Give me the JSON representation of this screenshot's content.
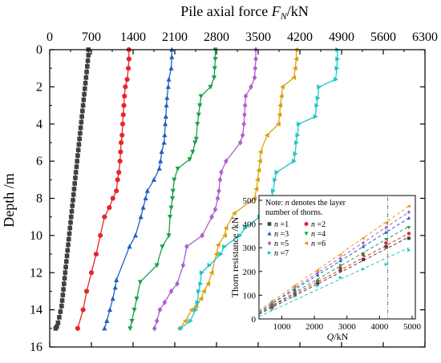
{
  "chart_data": [
    {
      "type": "line",
      "xlabel": "Pile axial force F_N/kN",
      "xlabel_main": "Pile axial force ",
      "xlabel_var": "F",
      "xlabel_sub": "N",
      "xlabel_unit": "/kN",
      "ylabel": "Depth /m",
      "xlim": [
        0,
        6300
      ],
      "ylim": [
        0,
        16
      ],
      "x_axis_position": "top",
      "y_inverted": true,
      "grid": false,
      "x_ticks": [
        0,
        700,
        1400,
        2100,
        2800,
        3500,
        4200,
        4900,
        5600,
        6300
      ],
      "y_ticks": [
        0,
        2,
        4,
        6,
        8,
        10,
        12,
        14,
        16
      ],
      "series": [
        {
          "color": "#404040",
          "marker": "square",
          "x": [
            650,
            650,
            640,
            630,
            620,
            610,
            600,
            590,
            580,
            570,
            560,
            550,
            540,
            530,
            520,
            510,
            500,
            490,
            480,
            470,
            460,
            450,
            440,
            430,
            420,
            410,
            400,
            390,
            380,
            370,
            360,
            350,
            340,
            330,
            320,
            310,
            300,
            290,
            280,
            270,
            260,
            250,
            240,
            230,
            220,
            210,
            200,
            180,
            160,
            140,
            120,
            100
          ],
          "y": [
            0,
            0.3,
            0.6,
            0.9,
            1.2,
            1.5,
            1.8,
            2.1,
            2.4,
            2.7,
            3.0,
            3.3,
            3.6,
            3.9,
            4.2,
            4.5,
            4.8,
            5.1,
            5.4,
            5.7,
            6.0,
            6.3,
            6.6,
            6.9,
            7.2,
            7.5,
            7.8,
            8.1,
            8.4,
            8.7,
            9.0,
            9.3,
            9.6,
            9.9,
            10.2,
            10.5,
            10.8,
            11.1,
            11.4,
            11.7,
            12.0,
            12.3,
            12.6,
            12.9,
            13.2,
            13.5,
            13.8,
            14.1,
            14.4,
            14.7,
            14.9,
            15.0
          ]
        },
        {
          "color": "#e8252a",
          "marker": "circle",
          "x": [
            1330,
            1330,
            1320,
            1300,
            1270,
            1255,
            1245,
            1235,
            1225,
            1215,
            1200,
            1190,
            1180,
            1160,
            1140,
            1120,
            1060,
            1000,
            920,
            850,
            780,
            700,
            620,
            560,
            470
          ],
          "y": [
            0,
            0.5,
            1.0,
            1.6,
            2.0,
            2.5,
            3.0,
            3.5,
            4.0,
            4.6,
            5.0,
            5.5,
            6.0,
            6.6,
            7.0,
            7.6,
            8.0,
            8.5,
            9.0,
            10.0,
            11.0,
            12.0,
            13.0,
            14.0,
            15.0
          ]
        },
        {
          "color": "#1f5fc4",
          "marker": "triangle-up",
          "x": [
            2050,
            2050,
            2040,
            2000,
            1990,
            1970,
            1960,
            1950,
            1940,
            1930,
            1920,
            1880,
            1860,
            1840,
            1750,
            1640,
            1610,
            1570,
            1530,
            1440,
            1340,
            1120,
            1100,
            1060,
            1010,
            960,
            920
          ],
          "y": [
            0,
            0.4,
            1.0,
            1.6,
            2.0,
            2.6,
            3.0,
            3.6,
            4.0,
            4.6,
            5.0,
            5.5,
            6.0,
            6.4,
            7.0,
            7.6,
            8.0,
            8.5,
            9.0,
            10.0,
            10.6,
            12.4,
            12.8,
            13.4,
            14.0,
            14.6,
            15.0
          ]
        },
        {
          "color": "#17a04a",
          "marker": "triangle-down",
          "x": [
            2780,
            2780,
            2770,
            2760,
            2700,
            2540,
            2520,
            2500,
            2480,
            2460,
            2440,
            2400,
            2350,
            2150,
            2090,
            2070,
            2060,
            2040,
            2020,
            2000,
            1890,
            1800,
            1520,
            1460,
            1420,
            1380,
            1350
          ],
          "y": [
            0,
            0.5,
            1.0,
            1.5,
            2.0,
            2.5,
            3.0,
            3.5,
            4.0,
            4.8,
            5.0,
            5.5,
            5.9,
            6.4,
            7.0,
            7.6,
            8.0,
            8.5,
            9.0,
            10.0,
            10.6,
            11.6,
            12.5,
            13.4,
            14.0,
            14.6,
            15.0
          ]
        },
        {
          "color": "#b05fd0",
          "marker": "diamond",
          "x": [
            3460,
            3460,
            3450,
            3440,
            3380,
            3290,
            3280,
            3270,
            3260,
            3240,
            3200,
            2960,
            2880,
            2860,
            2840,
            2820,
            2780,
            2720,
            2560,
            2300,
            2240,
            2140,
            2040,
            1930,
            1850,
            1800,
            1760
          ],
          "y": [
            0,
            0.5,
            1.0,
            1.5,
            2.0,
            2.5,
            3.0,
            3.5,
            4.0,
            4.6,
            5.0,
            6.0,
            6.6,
            7.0,
            7.6,
            8.0,
            8.6,
            9.0,
            10.0,
            10.6,
            11.6,
            12.6,
            13.0,
            13.6,
            14.0,
            14.6,
            15.0
          ]
        },
        {
          "color": "#dba011",
          "marker": "triangle-left",
          "x": [
            4140,
            4140,
            4120,
            4100,
            3910,
            3890,
            3870,
            3860,
            3840,
            3650,
            3540,
            3530,
            3510,
            3490,
            3470,
            3440,
            3100,
            2960,
            2940,
            2830,
            2800,
            2720,
            2660,
            2590,
            2540,
            2460,
            2380,
            2280,
            2180
          ],
          "y": [
            0,
            0.5,
            1.0,
            1.5,
            2.0,
            2.5,
            3.0,
            3.5,
            4.0,
            4.6,
            5.5,
            6.0,
            6.5,
            7.0,
            7.5,
            8.0,
            8.8,
            9.6,
            10.0,
            10.5,
            11.0,
            12.0,
            12.6,
            13.0,
            13.4,
            13.8,
            14.0,
            14.6,
            15.0
          ]
        },
        {
          "color": "#1ec5c5",
          "marker": "triangle-right",
          "x": [
            4830,
            4830,
            4820,
            4800,
            4520,
            4500,
            4480,
            4460,
            4180,
            4160,
            4140,
            4120,
            4100,
            3810,
            3780,
            3750,
            3720,
            3680,
            3520,
            3280,
            3190,
            2930,
            2870,
            2680,
            2550,
            2530,
            2500,
            2480,
            2450,
            2360,
            2200
          ],
          "y": [
            0,
            0.5,
            1.0,
            1.6,
            2.0,
            2.6,
            3.0,
            3.6,
            4.0,
            4.6,
            5.0,
            5.6,
            6.0,
            6.6,
            7.0,
            7.6,
            8.0,
            8.6,
            9.0,
            9.6,
            10.0,
            10.6,
            11.0,
            11.6,
            12.0,
            12.6,
            13.0,
            13.6,
            14.0,
            14.6,
            15.0
          ]
        }
      ]
    },
    {
      "type": "scatter",
      "xlabel": "Q/kN",
      "xlabel_var": "Q",
      "xlabel_unit": "/kN",
      "ylabel": "Thorn resistance /kN",
      "xlim": [
        300,
        5100
      ],
      "ylim": [
        0,
        520
      ],
      "x_ticks": [
        1000,
        2000,
        3000,
        4000,
        5000
      ],
      "y_ticks": [
        0,
        100,
        200,
        300,
        400,
        500
      ],
      "vline_x": 4250,
      "note": "Note: n denotes the layer number of thorns.",
      "note_line1": "Note: ",
      "note_var": "n",
      "note_line1_rest": " denotes the layer",
      "note_line2": "number of thorns.",
      "legend": [
        {
          "var": "n",
          "text": " =1"
        },
        {
          "var": "n",
          "text": " =2"
        },
        {
          "var": "n",
          "text": " =3"
        },
        {
          "var": "n",
          "text": " =4"
        },
        {
          "var": "n",
          "text": " =5"
        },
        {
          "var": "n",
          "text": " =6"
        },
        {
          "var": "n",
          "text": " =7"
        }
      ],
      "series": [
        {
          "color": "#404040",
          "marker": "square",
          "x": [
            700,
            1400,
            2100,
            2800,
            3500,
            4200,
            4900
          ],
          "y": [
            50,
            100,
            150,
            205,
            250,
            305,
            340
          ],
          "fit": [
            [
              300,
              20
            ],
            [
              4900,
              345
            ]
          ]
        },
        {
          "color": "#e8252a",
          "marker": "circle",
          "x": [
            700,
            1400,
            2100,
            2800,
            3500,
            4200,
            4900
          ],
          "y": [
            55,
            110,
            160,
            215,
            270,
            320,
            360
          ],
          "fit": [
            [
              300,
              25
            ],
            [
              4900,
              360
            ]
          ]
        },
        {
          "color": "#1f5fc4",
          "marker": "triangle-up",
          "x": [
            700,
            1400,
            2100,
            2800,
            3500,
            4200,
            4900
          ],
          "y": [
            65,
            125,
            185,
            245,
            305,
            365,
            425
          ],
          "fit": [
            [
              300,
              30
            ],
            [
              4900,
              425
            ]
          ]
        },
        {
          "color": "#17a04a",
          "marker": "triangle-down",
          "x": [
            700,
            1400,
            2100,
            2800,
            3500,
            4200,
            4900
          ],
          "y": [
            60,
            115,
            160,
            225,
            275,
            335,
            385
          ],
          "fit": [
            [
              300,
              25
            ],
            [
              4900,
              390
            ]
          ]
        },
        {
          "color": "#b05fd0",
          "marker": "diamond",
          "x": [
            700,
            1400,
            2100,
            2800,
            3500,
            4200,
            4900
          ],
          "y": [
            70,
            135,
            195,
            255,
            320,
            385,
            450
          ],
          "fit": [
            [
              300,
              30
            ],
            [
              4900,
              450
            ]
          ]
        },
        {
          "color": "#dba011",
          "marker": "triangle-left",
          "x": [
            700,
            1400,
            2100,
            2800,
            3500,
            4200,
            4900
          ],
          "y": [
            75,
            140,
            205,
            270,
            340,
            405,
            475
          ],
          "fit": [
            [
              300,
              35
            ],
            [
              4900,
              475
            ]
          ]
        },
        {
          "color": "#1ec5c5",
          "marker": "triangle-right",
          "x": [
            700,
            1400,
            2100,
            2800,
            3500,
            4200,
            4900
          ],
          "y": [
            40,
            95,
            140,
            175,
            210,
            230,
            290
          ],
          "fit": [
            [
              300,
              10
            ],
            [
              4900,
              300
            ]
          ]
        }
      ]
    }
  ]
}
